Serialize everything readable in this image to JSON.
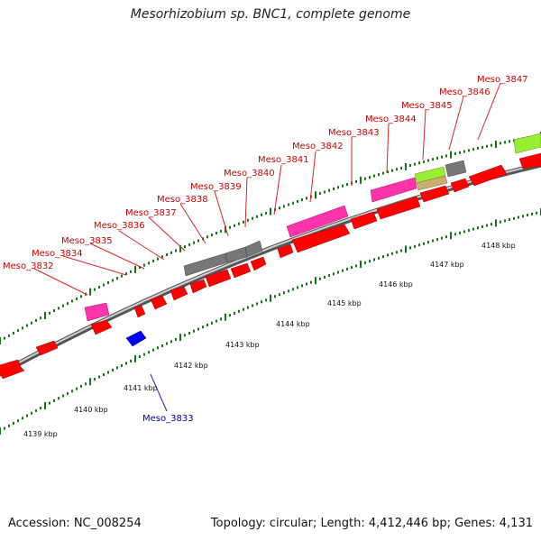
{
  "title": "Mesorhizobium sp. BNC1, complete genome",
  "footer": {
    "accession": "Accession: NC_008254",
    "summary": "Topology: circular; Length: 4,412,446 bp; Genes: 4,131"
  },
  "colors": {
    "forward": "#ff0000",
    "reverse": "#0000ff",
    "pink": "#ff33aa",
    "gray": "#777777",
    "lime": "#99ee33",
    "khaki": "#c8b070",
    "backbone": "#999999",
    "tick": "#117711",
    "label_forward": "#cc0000",
    "label_reverse": "#0000aa"
  },
  "scale": {
    "unit": "kbp",
    "labels": [
      "4139 kbp",
      "4140 kbp",
      "4141 kbp",
      "4142 kbp",
      "4143 kbp",
      "4144 kbp",
      "4145 kbp",
      "4146 kbp",
      "4147 kbp",
      "4148 kbp"
    ]
  },
  "gene_labels": [
    {
      "text": "Meso_3832",
      "strand": "forward"
    },
    {
      "text": "Meso_3833",
      "strand": "reverse"
    },
    {
      "text": "Meso_3834",
      "strand": "forward"
    },
    {
      "text": "Meso_3835",
      "strand": "forward"
    },
    {
      "text": "Meso_3836",
      "strand": "forward"
    },
    {
      "text": "Meso_3837",
      "strand": "forward"
    },
    {
      "text": "Meso_3838",
      "strand": "forward"
    },
    {
      "text": "Meso_3839",
      "strand": "forward"
    },
    {
      "text": "Meso_3840",
      "strand": "forward"
    },
    {
      "text": "Meso_3841",
      "strand": "forward"
    },
    {
      "text": "Meso_3842",
      "strand": "forward"
    },
    {
      "text": "Meso_3843",
      "strand": "forward"
    },
    {
      "text": "Meso_3844",
      "strand": "forward"
    },
    {
      "text": "Meso_3845",
      "strand": "forward"
    },
    {
      "text": "Meso_3846",
      "strand": "forward"
    },
    {
      "text": "Meso_3847",
      "strand": "forward"
    }
  ]
}
